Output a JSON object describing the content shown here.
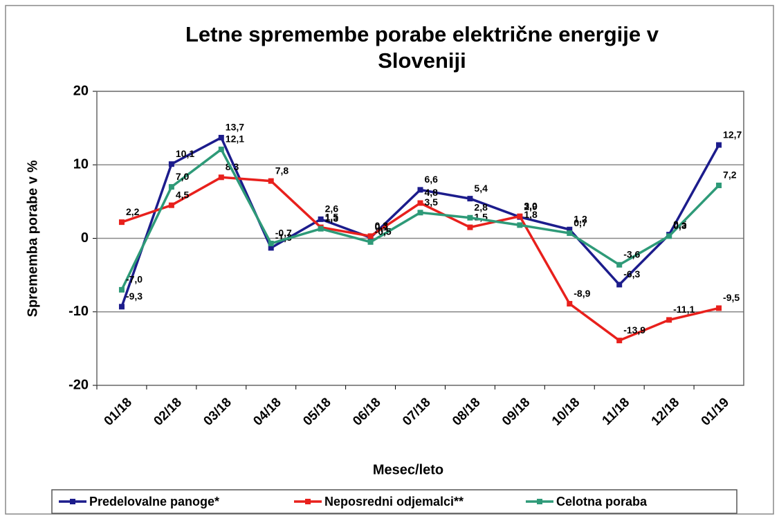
{
  "chart_data": {
    "type": "line",
    "title": "Letne spremembe porabe električne energije v Sloveniji",
    "x_label": "Mesec/leto",
    "y_label": "Sprememba porabe v %",
    "categories": [
      "01/18",
      "02/18",
      "03/18",
      "04/18",
      "05/18",
      "06/18",
      "07/18",
      "08/18",
      "09/18",
      "10/18",
      "11/18",
      "12/18",
      "01/19"
    ],
    "series": [
      {
        "name": "Predelovalne panoge*",
        "color": "#1c1c8c",
        "values": [
          -9.3,
          10.1,
          13.7,
          -1.3,
          2.6,
          0.1,
          6.6,
          5.4,
          2.9,
          1.2,
          -6.3,
          0.5,
          12.7
        ],
        "value_labels": [
          "-9,3",
          "10,1",
          "13,7",
          "-1,3",
          "2,6",
          "0,1",
          "6,6",
          "5,4",
          "2,9",
          "1,2",
          "-6,3",
          "0,5",
          "12,7"
        ]
      },
      {
        "name": "Neposredni odjemalci**",
        "color": "#e8201c",
        "values": [
          2.2,
          4.5,
          8.3,
          7.8,
          1.5,
          0.3,
          4.8,
          1.5,
          3.0,
          -8.9,
          -13.9,
          -11.1,
          -9.5
        ],
        "value_labels": [
          "2,2",
          "4,5",
          "8,3",
          "7,8",
          "1,5",
          "0,3",
          "4,8",
          "1,5",
          "3,0",
          "-8,9",
          "-13,9",
          "-11,1",
          "-9,5"
        ]
      },
      {
        "name": "Celotna poraba",
        "color": "#2e9a78",
        "values": [
          -7.0,
          7.0,
          12.1,
          -0.7,
          1.3,
          -0.5,
          3.5,
          2.8,
          1.8,
          0.7,
          -3.6,
          0.3,
          7.2
        ],
        "value_labels": [
          "-7,0",
          "7,0",
          "12,1",
          "-0,7",
          "1,3",
          "-0,5",
          "3,5",
          "2,8",
          "1,8",
          "0,7",
          "-3,6",
          "0,3",
          "7,2"
        ]
      }
    ],
    "ylim": [
      -20,
      20
    ],
    "yticks": [
      -20,
      -10,
      0,
      10,
      20
    ],
    "grid": true,
    "legend": "bottom"
  }
}
